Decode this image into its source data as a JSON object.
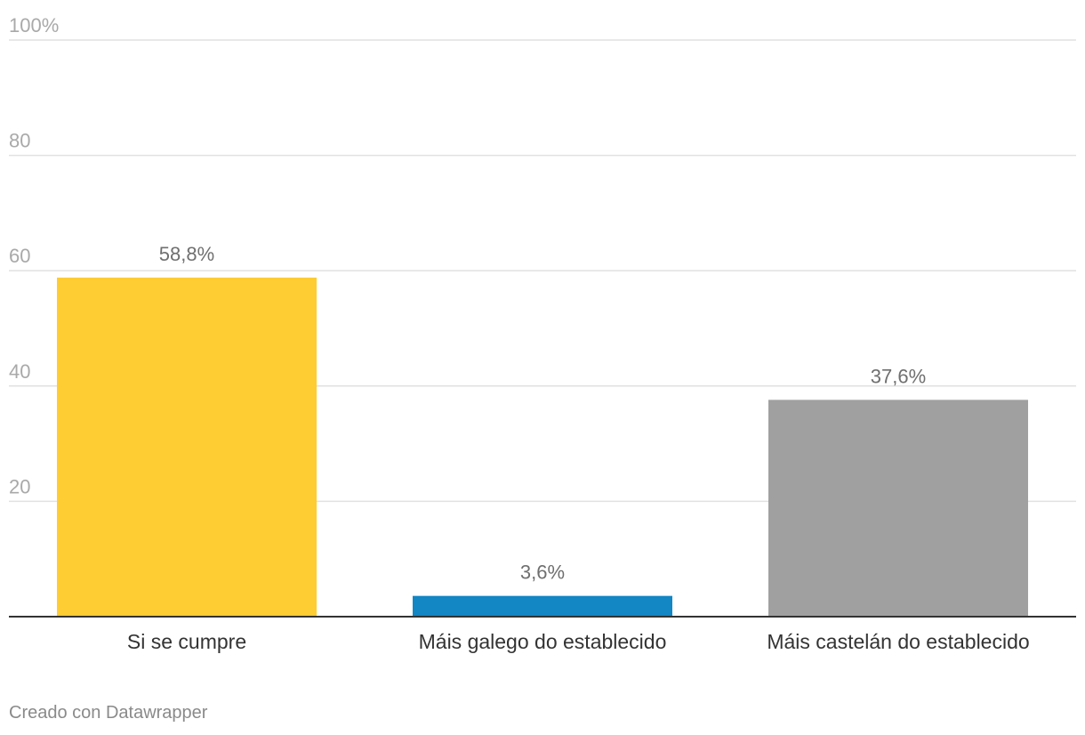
{
  "chart_data": {
    "type": "bar",
    "categories": [
      "Si se cumpre",
      "Máis galego do establecido",
      "Máis castelán do establecido"
    ],
    "values": [
      58.8,
      3.6,
      37.6
    ],
    "value_labels": [
      "58,8%",
      "3,6%",
      "37,6%"
    ],
    "colors": [
      "#fecc33",
      "#1386c4",
      "#a0a0a0"
    ],
    "title": "",
    "xlabel": "",
    "ylabel": "",
    "ylim": [
      0,
      100
    ],
    "yticks": [
      20,
      40,
      60,
      80,
      100
    ],
    "ytick_labels": [
      "20",
      "40",
      "60",
      "80",
      "100%"
    ],
    "grid": true
  },
  "footer": {
    "credit": "Creado con Datawrapper"
  }
}
